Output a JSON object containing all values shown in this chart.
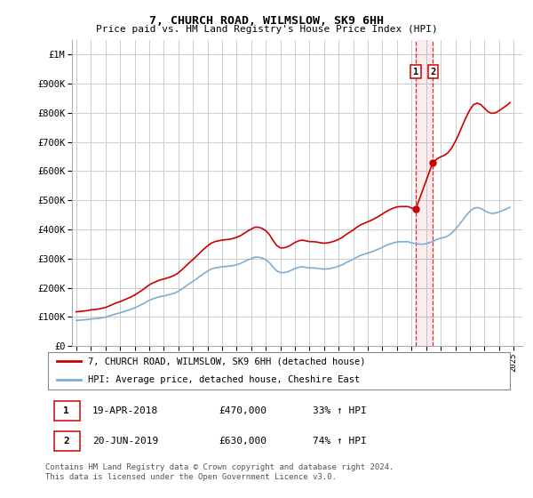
{
  "title": "7, CHURCH ROAD, WILMSLOW, SK9 6HH",
  "subtitle": "Price paid vs. HM Land Registry's House Price Index (HPI)",
  "ylabel_ticks": [
    "£0",
    "£100K",
    "£200K",
    "£300K",
    "£400K",
    "£500K",
    "£600K",
    "£700K",
    "£800K",
    "£900K",
    "£1M"
  ],
  "ytick_vals": [
    0,
    100000,
    200000,
    300000,
    400000,
    500000,
    600000,
    700000,
    800000,
    900000,
    1000000
  ],
  "ylim": [
    0,
    1050000
  ],
  "xlim_start": 1994.7,
  "xlim_end": 2025.6,
  "hpi_x": [
    1995.0,
    1995.25,
    1995.5,
    1995.75,
    1996.0,
    1996.25,
    1996.5,
    1996.75,
    1997.0,
    1997.25,
    1997.5,
    1997.75,
    1998.0,
    1998.25,
    1998.5,
    1998.75,
    1999.0,
    1999.25,
    1999.5,
    1999.75,
    2000.0,
    2000.25,
    2000.5,
    2000.75,
    2001.0,
    2001.25,
    2001.5,
    2001.75,
    2002.0,
    2002.25,
    2002.5,
    2002.75,
    2003.0,
    2003.25,
    2003.5,
    2003.75,
    2004.0,
    2004.25,
    2004.5,
    2004.75,
    2005.0,
    2005.25,
    2005.5,
    2005.75,
    2006.0,
    2006.25,
    2006.5,
    2006.75,
    2007.0,
    2007.25,
    2007.5,
    2007.75,
    2008.0,
    2008.25,
    2008.5,
    2008.75,
    2009.0,
    2009.25,
    2009.5,
    2009.75,
    2010.0,
    2010.25,
    2010.5,
    2010.75,
    2011.0,
    2011.25,
    2011.5,
    2011.75,
    2012.0,
    2012.25,
    2012.5,
    2012.75,
    2013.0,
    2013.25,
    2013.5,
    2013.75,
    2014.0,
    2014.25,
    2014.5,
    2014.75,
    2015.0,
    2015.25,
    2015.5,
    2015.75,
    2016.0,
    2016.25,
    2016.5,
    2016.75,
    2017.0,
    2017.25,
    2017.5,
    2017.75,
    2018.0,
    2018.25,
    2018.5,
    2018.75,
    2019.0,
    2019.25,
    2019.5,
    2019.75,
    2020.0,
    2020.25,
    2020.5,
    2020.75,
    2021.0,
    2021.25,
    2021.5,
    2021.75,
    2022.0,
    2022.25,
    2022.5,
    2022.75,
    2023.0,
    2023.25,
    2023.5,
    2023.75,
    2024.0,
    2024.25,
    2024.5,
    2024.75
  ],
  "hpi_y": [
    88000,
    89000,
    90000,
    91000,
    93000,
    94000,
    95000,
    97000,
    99000,
    103000,
    107000,
    111000,
    114000,
    118000,
    122000,
    126000,
    131000,
    137000,
    143000,
    150000,
    157000,
    162000,
    166000,
    170000,
    172000,
    175000,
    178000,
    182000,
    188000,
    196000,
    205000,
    214000,
    222000,
    231000,
    240000,
    249000,
    257000,
    264000,
    268000,
    270000,
    272000,
    273000,
    274000,
    276000,
    279000,
    283000,
    289000,
    295000,
    300000,
    305000,
    305000,
    302000,
    296000,
    286000,
    271000,
    258000,
    252000,
    252000,
    255000,
    260000,
    266000,
    270000,
    272000,
    270000,
    268000,
    268000,
    267000,
    265000,
    264000,
    265000,
    267000,
    270000,
    274000,
    279000,
    286000,
    292000,
    298000,
    305000,
    311000,
    315000,
    319000,
    323000,
    328000,
    333000,
    339000,
    345000,
    350000,
    354000,
    357000,
    358000,
    358000,
    358000,
    354000,
    352000,
    350000,
    349000,
    351000,
    355000,
    360000,
    366000,
    370000,
    373000,
    378000,
    387000,
    400000,
    415000,
    432000,
    448000,
    462000,
    472000,
    475000,
    472000,
    465000,
    458000,
    455000,
    456000,
    460000,
    465000,
    470000,
    476000
  ],
  "sale1_x": 2018.29,
  "sale1_y": 470000,
  "sale2_x": 2019.46,
  "sale2_y": 630000,
  "red_line_color": "#cc0000",
  "blue_line_color": "#7dadd4",
  "vline_color": "#cc0000",
  "bg_color": "#ffffff",
  "grid_color": "#cccccc",
  "footer_text": "Contains HM Land Registry data © Crown copyright and database right 2024.\nThis data is licensed under the Open Government Licence v3.0."
}
